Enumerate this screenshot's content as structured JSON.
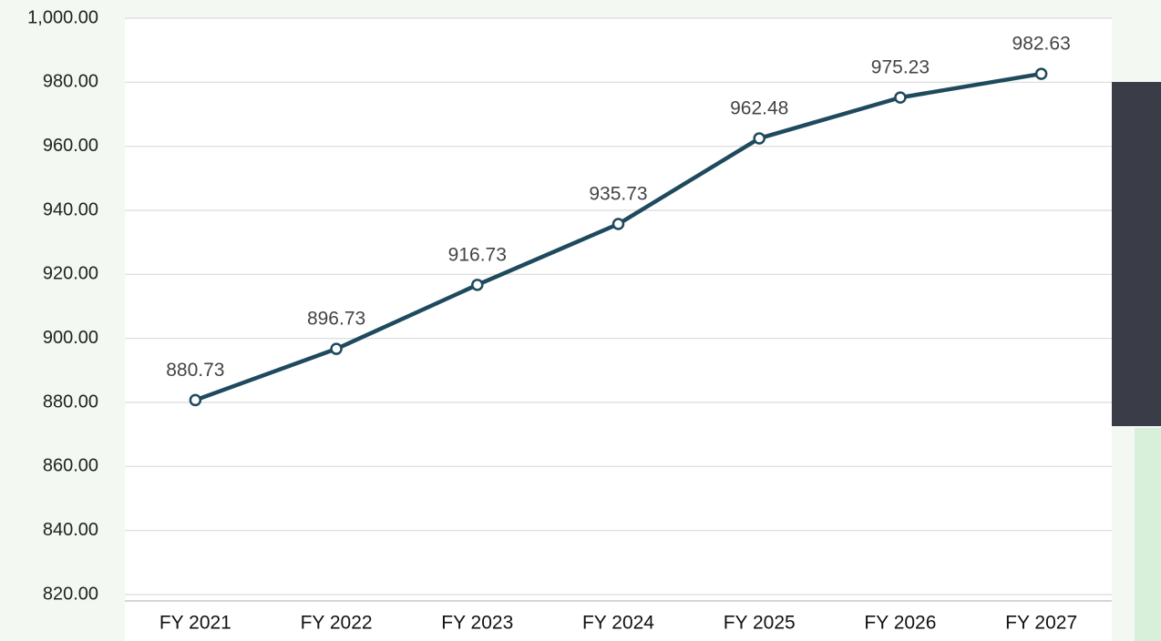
{
  "chart_data": {
    "type": "line",
    "categories": [
      "FY 2021",
      "FY 2022",
      "FY 2023",
      "FY 2024",
      "FY 2025",
      "FY 2026",
      "FY 2027"
    ],
    "values": [
      880.73,
      896.73,
      916.73,
      935.73,
      962.48,
      975.23,
      982.63
    ],
    "color": "#1f4a5e",
    "ylim": [
      820,
      1000
    ],
    "yticks": [
      {
        "value": 820,
        "label": "820.00"
      },
      {
        "value": 840,
        "label": "840.00"
      },
      {
        "value": 860,
        "label": "860.00"
      },
      {
        "value": 880,
        "label": "880.00"
      },
      {
        "value": 900,
        "label": "900.00"
      },
      {
        "value": 920,
        "label": "920.00"
      },
      {
        "value": 940,
        "label": "940.00"
      },
      {
        "value": 960,
        "label": "960.00"
      },
      {
        "value": 980,
        "label": "980.00"
      },
      {
        "value": 1000,
        "label": "1,000.00"
      }
    ],
    "grid": true
  }
}
